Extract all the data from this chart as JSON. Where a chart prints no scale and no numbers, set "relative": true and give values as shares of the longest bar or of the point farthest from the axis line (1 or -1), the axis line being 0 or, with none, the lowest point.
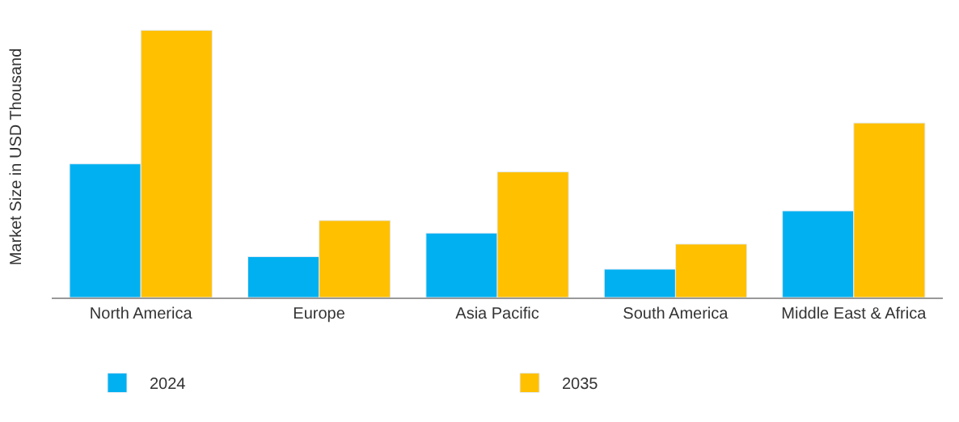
{
  "chart_data": {
    "type": "bar",
    "relative": true,
    "ylabel": "Market Size in USD Thousand",
    "categories": [
      "North America",
      "Europe",
      "Asia Pacific",
      "South America",
      "Middle East & Africa"
    ],
    "series": [
      {
        "name": "2024",
        "color": "#00b0f0",
        "values": [
          0.5,
          0.153,
          0.241,
          0.106,
          0.324
        ]
      },
      {
        "name": "2035",
        "color": "#ffc000",
        "values": [
          1,
          0.288,
          0.47,
          0.2,
          0.653
        ]
      }
    ],
    "legend": "bottom"
  }
}
